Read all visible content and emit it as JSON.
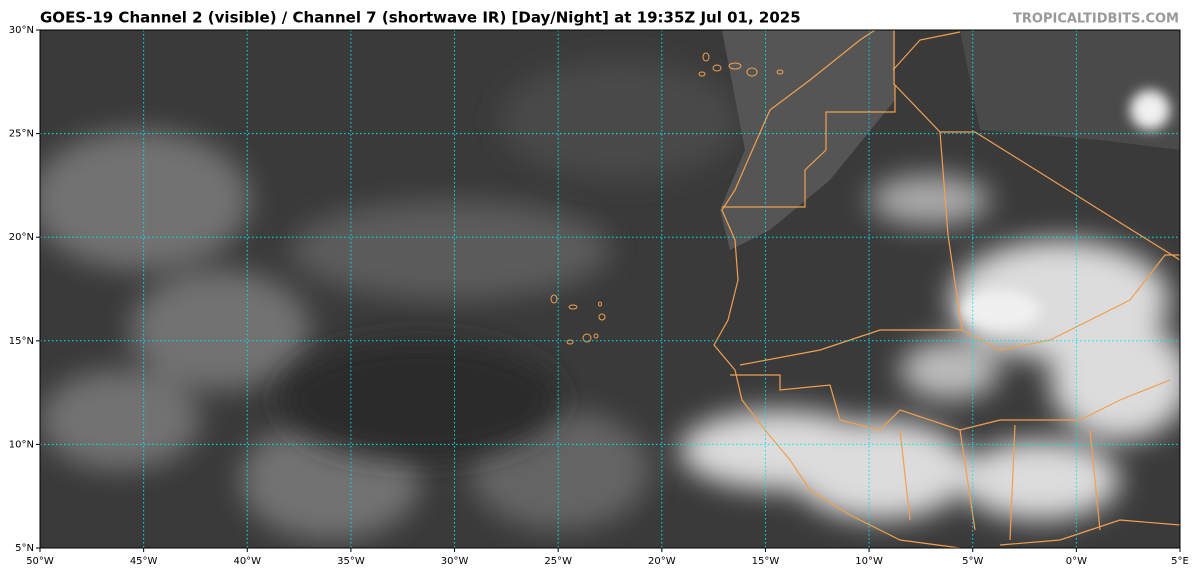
{
  "header": {
    "title": "GOES-19 Channel 2 (visible) / Channel 7 (shortwave IR) [Day/Night] at 19:35Z Jul 01, 2025",
    "source": "TROPICALTIDBITS.COM"
  },
  "map": {
    "xlim": [
      -50,
      5
    ],
    "ylim": [
      5,
      30
    ],
    "xticks": [
      {
        "value": -50,
        "label": "50°W"
      },
      {
        "value": -45,
        "label": "45°W"
      },
      {
        "value": -40,
        "label": "40°W"
      },
      {
        "value": -35,
        "label": "35°W"
      },
      {
        "value": -30,
        "label": "30°W"
      },
      {
        "value": -25,
        "label": "25°W"
      },
      {
        "value": -20,
        "label": "20°W"
      },
      {
        "value": -15,
        "label": "15°W"
      },
      {
        "value": -10,
        "label": "10°W"
      },
      {
        "value": -5,
        "label": "5°W"
      },
      {
        "value": 0,
        "label": "0°W"
      },
      {
        "value": 5,
        "label": "5°E"
      }
    ],
    "yticks": [
      {
        "value": 5,
        "label": "5°N"
      },
      {
        "value": 10,
        "label": "10°N"
      },
      {
        "value": 15,
        "label": "15°N"
      },
      {
        "value": 20,
        "label": "20°N"
      },
      {
        "value": 25,
        "label": "25°N"
      },
      {
        "value": 30,
        "label": "30°N"
      }
    ],
    "grid_color": "#00e5ee"
  }
}
